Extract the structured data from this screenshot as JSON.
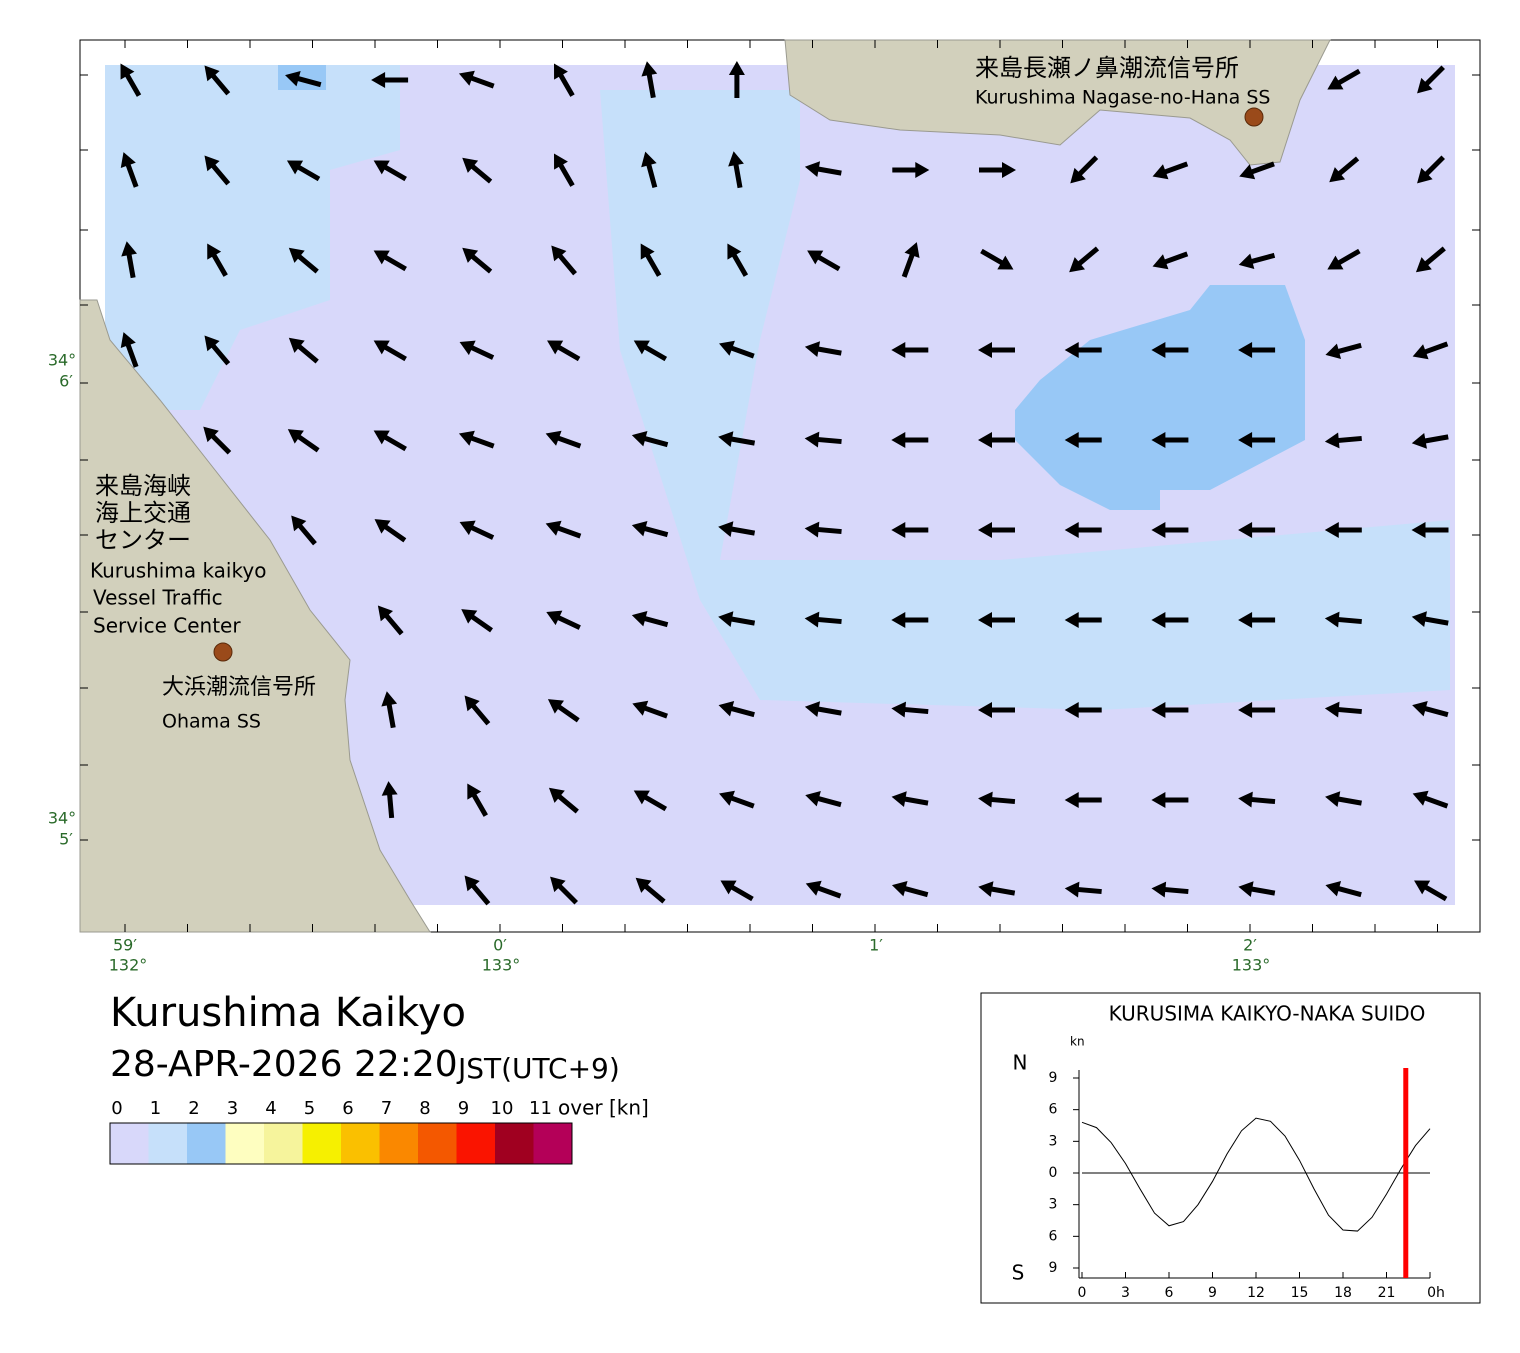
{
  "map": {
    "stations": [
      {
        "name_ja": "来島長瀬ノ鼻潮流信号所",
        "name_en": "Kurushima Nagase-no-Hana SS"
      },
      {
        "name_ja": "大浜潮流信号所",
        "name_en": "Ohama SS"
      }
    ],
    "vts": {
      "lines_ja": [
        "来島海峡",
        "海上交通",
        "センター"
      ],
      "lines_en": [
        "Kurushima kaikyo",
        "Vessel Traffic",
        "Service Center"
      ]
    },
    "lat_labels": [
      {
        "deg": "34°",
        "min": "6′"
      },
      {
        "deg": "34°",
        "min": "5′"
      }
    ],
    "lon_labels": [
      {
        "min": "59′",
        "deg": "132°"
      },
      {
        "min": "0′",
        "deg": "133°"
      },
      {
        "min": "1′"
      },
      {
        "min": "2′",
        "deg": "133°"
      }
    ]
  },
  "current_field": {
    "direction_deg": [
      [
        330,
        320,
        285,
        270,
        290,
        330,
        350,
        0,
        null,
        null,
        null,
        null,
        null,
        null,
        240,
        225
      ],
      [
        340,
        320,
        300,
        300,
        310,
        330,
        345,
        350,
        280,
        90,
        90,
        225,
        250,
        250,
        230,
        225
      ],
      [
        350,
        330,
        310,
        300,
        310,
        320,
        330,
        330,
        300,
        20,
        120,
        230,
        250,
        255,
        240,
        230
      ],
      [
        340,
        320,
        310,
        300,
        295,
        300,
        300,
        290,
        280,
        270,
        270,
        270,
        270,
        270,
        255,
        250
      ],
      [
        null,
        315,
        305,
        300,
        290,
        290,
        285,
        280,
        275,
        270,
        270,
        270,
        270,
        270,
        265,
        260
      ],
      [
        null,
        null,
        320,
        305,
        295,
        290,
        285,
        280,
        275,
        270,
        270,
        270,
        270,
        270,
        270,
        270
      ],
      [
        null,
        null,
        null,
        320,
        305,
        295,
        285,
        280,
        275,
        270,
        270,
        270,
        270,
        270,
        275,
        280
      ],
      [
        null,
        null,
        null,
        350,
        320,
        305,
        290,
        285,
        280,
        275,
        270,
        270,
        270,
        270,
        275,
        285
      ],
      [
        null,
        null,
        null,
        355,
        330,
        310,
        300,
        290,
        285,
        280,
        275,
        270,
        270,
        275,
        280,
        290
      ],
      [
        null,
        null,
        null,
        null,
        320,
        315,
        310,
        300,
        290,
        285,
        280,
        275,
        275,
        280,
        285,
        300
      ]
    ]
  },
  "title": "Kurushima Kaikyo",
  "datetime": "28-APR-2026 22:20",
  "timezone": "JST(UTC+9)",
  "legend": {
    "classes": [
      0,
      1,
      2,
      3,
      4,
      5,
      6,
      7,
      8,
      9,
      10,
      11
    ],
    "suffix": "over [kn]",
    "colors": [
      "#d8d8fa",
      "#c6e0fa",
      "#98c8f6",
      "#fefec0",
      "#f6f49c",
      "#f6f000",
      "#fac000",
      "#fa8800",
      "#f45800",
      "#fa1400",
      "#a00020",
      "#b40058"
    ]
  },
  "chart_data": {
    "type": "line",
    "title": "KURUSIMA KAIKYO-NAKA SUIDO",
    "y_unit": "kn",
    "north": "N",
    "south": "S",
    "x": [
      0,
      1,
      2,
      3,
      4,
      5,
      6,
      7,
      8,
      9,
      10,
      11,
      12,
      13,
      14,
      15,
      16,
      17,
      18,
      19,
      20,
      21,
      22,
      23,
      24
    ],
    "values": [
      4.8,
      4.3,
      2.9,
      0.9,
      -1.5,
      -3.8,
      -5.0,
      -4.6,
      -3.0,
      -0.8,
      1.8,
      4.0,
      5.2,
      4.9,
      3.5,
      1.2,
      -1.5,
      -4.0,
      -5.4,
      -5.5,
      -4.2,
      -2.0,
      0.4,
      2.6,
      4.2
    ],
    "color": "#000000",
    "marker_x": 22.33,
    "marker_color": "#ff0000",
    "xlim": [
      0,
      24
    ],
    "ylim": [
      -9,
      9
    ],
    "xticks": [
      0,
      3,
      6,
      9,
      12,
      15,
      18,
      21,
      {
        "value": 24,
        "label": "0h"
      }
    ],
    "yticks": [
      {
        "value": -9,
        "label": "9"
      },
      {
        "value": -6,
        "label": "6"
      },
      {
        "value": -3,
        "label": "3"
      },
      0,
      3,
      6,
      9
    ]
  }
}
